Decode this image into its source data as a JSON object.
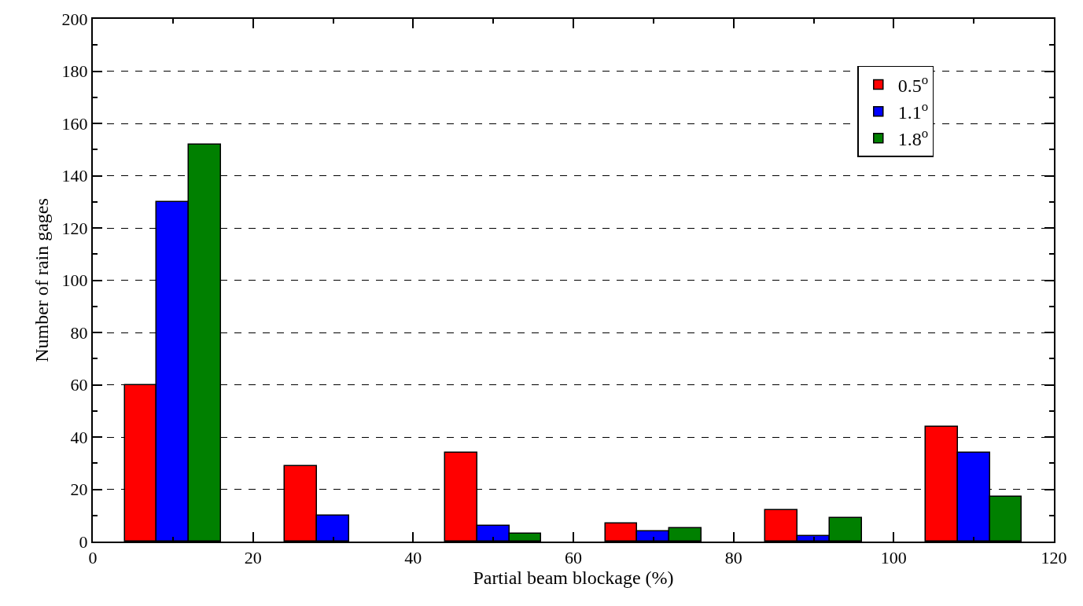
{
  "chart_data": {
    "type": "bar",
    "xlabel": "Partial beam blockage (%)",
    "ylabel": "Number of rain gages",
    "series": [
      {
        "name": "0.5$^{o}$",
        "color": "#ff0000",
        "x": [
          6,
          26,
          46,
          66,
          86,
          106
        ],
        "values": [
          60,
          29,
          34,
          7,
          12,
          44
        ]
      },
      {
        "name": "1.1$^{o}$",
        "color": "#0000ff",
        "x": [
          10,
          30,
          50,
          70,
          90,
          110
        ],
        "values": [
          130,
          10,
          6,
          4,
          2,
          34
        ]
      },
      {
        "name": "1.8$^{o}$",
        "color": "#008000",
        "x": [
          14,
          34,
          54,
          74,
          94,
          114
        ],
        "values": [
          152,
          null,
          3,
          5,
          9,
          17
        ]
      }
    ],
    "xlim": [
      0,
      120
    ],
    "xticks": [
      0,
      20,
      40,
      60,
      80,
      100,
      120
    ],
    "ylim": [
      0,
      200
    ],
    "yticks": [
      0,
      20,
      40,
      60,
      80,
      100,
      120,
      140,
      160,
      180,
      200
    ],
    "grid": "y",
    "legend": "top right"
  }
}
